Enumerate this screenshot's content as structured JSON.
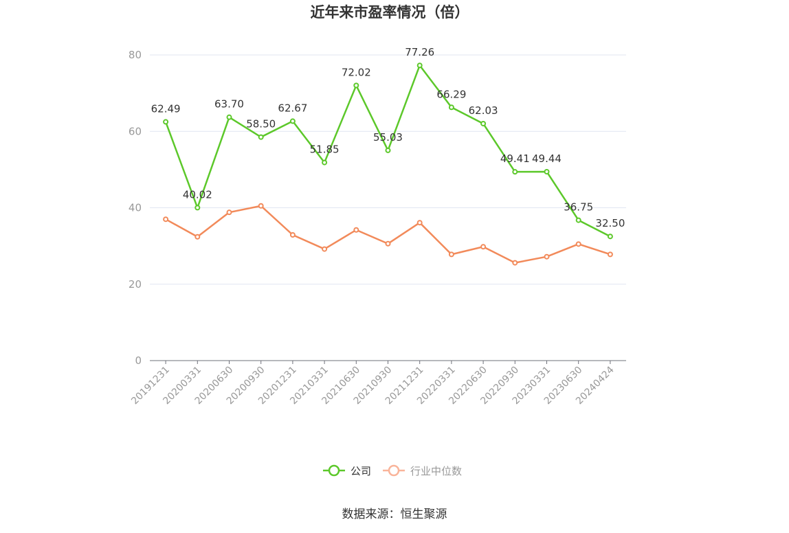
{
  "chart_data": {
    "type": "line",
    "title": "近年来市盈率情况（倍）",
    "categories": [
      "20191231",
      "20200331",
      "20200630",
      "20200930",
      "20201231",
      "20210331",
      "20210630",
      "20210930",
      "20211231",
      "20220331",
      "20220630",
      "20220930",
      "20230331",
      "20230630",
      "20240424"
    ],
    "series": [
      {
        "name": "公司",
        "color": "#5cc82a",
        "values": [
          62.49,
          40.02,
          63.7,
          58.5,
          62.67,
          51.85,
          72.02,
          55.03,
          77.26,
          66.29,
          62.03,
          49.41,
          49.44,
          36.75,
          32.5
        ],
        "labels": [
          "62.49",
          "40.02",
          "63.70",
          "58.50",
          "62.67",
          "51.85",
          "72.02",
          "55.03",
          "77.26",
          "66.29",
          "62.03",
          "49.41",
          "49.44",
          "36.75",
          "32.50"
        ]
      },
      {
        "name": "行业中位数",
        "color": "#f28a5a",
        "legend_color": "#f9b49a",
        "values": [
          37.0,
          32.4,
          38.8,
          40.5,
          32.9,
          29.2,
          34.2,
          30.6,
          36.1,
          27.8,
          29.8,
          25.6,
          27.2,
          30.5,
          27.8
        ]
      }
    ],
    "yticks": [
      "0",
      "20",
      "40",
      "60",
      "80"
    ],
    "ylim": [
      0,
      80
    ],
    "grid": true,
    "legend_position": "bottom-center"
  },
  "source": "数据来源：恒生聚源",
  "colors": {
    "grid": "#e0e6f1",
    "axis": "#6e7079"
  }
}
